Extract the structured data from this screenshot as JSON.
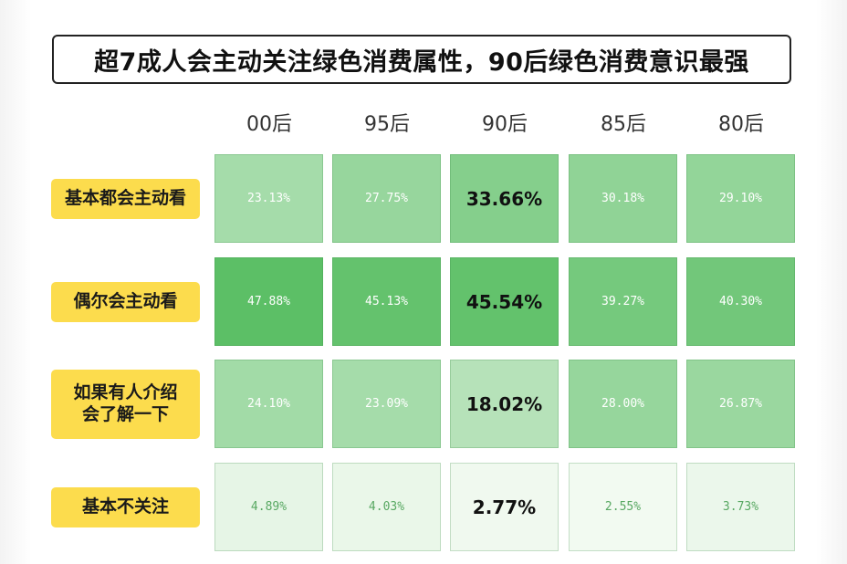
{
  "title": "超7成人会主动关注绿色消费属性，90后绿色消费意识最强",
  "chart_data": {
    "type": "heatmap",
    "columns": [
      "00后",
      "95后",
      "90后",
      "85后",
      "80后"
    ],
    "rows": [
      {
        "label": "基本都会主动看",
        "values": [
          "23.13%",
          "27.75%",
          "33.66%",
          "30.18%",
          "29.10%"
        ]
      },
      {
        "label": "偶尔会主动看",
        "values": [
          "47.88%",
          "45.13%",
          "45.54%",
          "39.27%",
          "40.30%"
        ]
      },
      {
        "label": "如果有人介绍\n会了解一下",
        "values": [
          "24.10%",
          "23.09%",
          "18.02%",
          "28.00%",
          "26.87%"
        ]
      },
      {
        "label": "基本不关注",
        "values": [
          "4.89%",
          "4.03%",
          "2.77%",
          "2.55%",
          "3.73%"
        ]
      }
    ],
    "highlight_column": 2,
    "color_low": "#f2faf1",
    "color_high": "#5cbf66"
  }
}
